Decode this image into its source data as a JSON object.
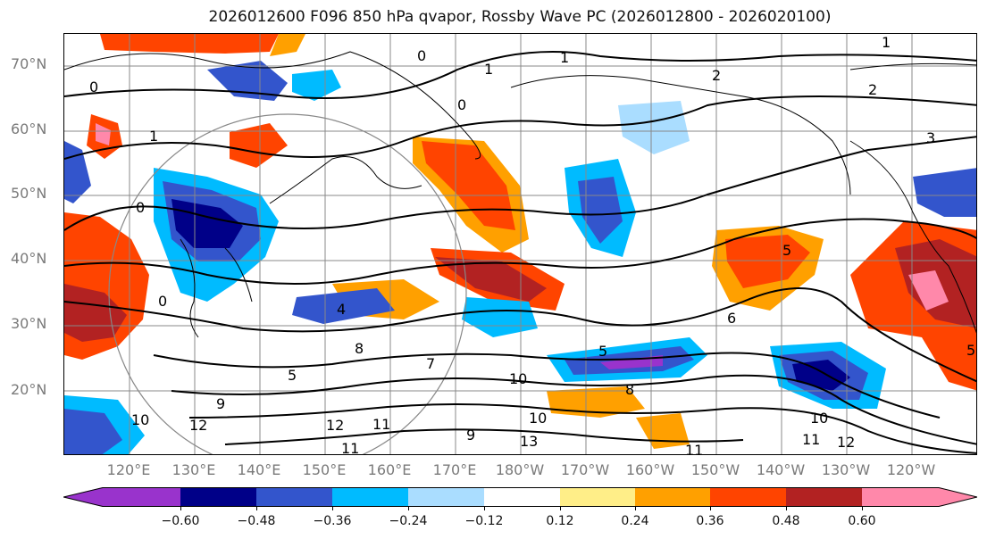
{
  "title": "2026012600 F096 850 hPa qvapor, Rossby Wave PC (2026012800 - 2026020100)",
  "lat_labels": [
    "70°N",
    "60°N",
    "50°N",
    "40°N",
    "30°N",
    "20°N"
  ],
  "lon_labels": [
    "120°E",
    "130°E",
    "140°E",
    "150°E",
    "160°E",
    "170°E",
    "180°W",
    "170°W",
    "160°W",
    "150°W",
    "140°W",
    "130°W",
    "120°W"
  ],
  "colorbar": {
    "ticks": [
      "−0.60",
      "−0.48",
      "−0.36",
      "−0.24",
      "−0.12",
      "0.12",
      "0.24",
      "0.36",
      "0.48",
      "0.60"
    ],
    "colors": [
      "#9933cc",
      "#000088",
      "#3355cc",
      "#00bbff",
      "#aaddff",
      "#ffffff",
      "#ffee88",
      "#ffa000",
      "#ff4400",
      "#b22222",
      "#ff88aa"
    ]
  },
  "contour_labels": [
    "0",
    "0",
    "0",
    "0",
    "0",
    "1",
    "1",
    "1",
    "1",
    "2",
    "2",
    "3",
    "4",
    "5",
    "5",
    "5",
    "5",
    "6",
    "7",
    "8",
    "8",
    "9",
    "9",
    "10",
    "10",
    "10",
    "10",
    "11",
    "11",
    "11",
    "11",
    "12",
    "12",
    "12",
    "13"
  ]
}
